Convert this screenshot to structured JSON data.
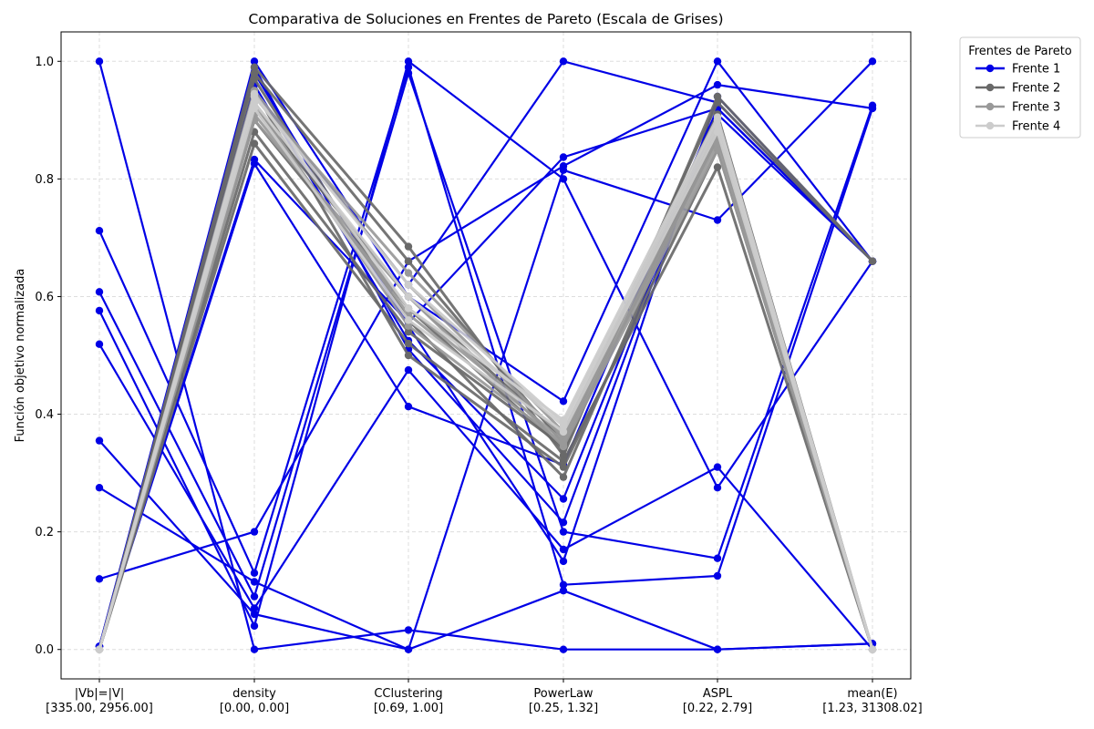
{
  "chart_data": {
    "type": "line",
    "subtype": "parallel-coordinates",
    "title": "Comparativa de Soluciones en Frentes de Pareto (Escala de Grises)",
    "xlabel": "",
    "ylabel": "Función objetivo normalizada",
    "ylim": [
      -0.05,
      1.05
    ],
    "yticks": [
      "0.0",
      "0.2",
      "0.4",
      "0.6",
      "0.8",
      "1.0"
    ],
    "grid": true,
    "axes": [
      {
        "name": "|Vb|=|V|",
        "range": "[335.00, 2956.00]"
      },
      {
        "name": "density",
        "range": "[0.00, 0.00]"
      },
      {
        "name": "CClustering",
        "range": "[0.69, 1.00]"
      },
      {
        "name": "PowerLaw",
        "range": "[0.25, 1.32]"
      },
      {
        "name": "ASPL",
        "range": "[0.22, 2.79]"
      },
      {
        "name": "mean(E)",
        "range": "[1.23, 31308.02]"
      }
    ],
    "legend": {
      "title": "Frentes de Pareto",
      "position": "outside-top-right",
      "entries": [
        "Frente 1",
        "Frente 2",
        "Frente 3",
        "Frente 4"
      ]
    },
    "series": [
      {
        "name": "Frente 1",
        "color": "#0000e6",
        "lines": [
          [
            1.0,
            0.0,
            0.033,
            0.0,
            0.0,
            0.01
          ],
          [
            0.712,
            0.13,
            0.99,
            0.11,
            0.125,
            0.92
          ],
          [
            0.608,
            0.09,
            0.98,
            0.2,
            0.155,
            0.925
          ],
          [
            0.576,
            0.04,
            1.0,
            0.8,
            0.275,
            0.66
          ],
          [
            0.519,
            0.07,
            0.475,
            0.17,
            0.31,
            0.0
          ],
          [
            0.355,
            0.06,
            0.0,
            0.1,
            0.0,
            0.01
          ],
          [
            0.275,
            0.115,
            0.0,
            0.815,
            0.73,
            1.0
          ],
          [
            0.12,
            0.2,
            0.66,
            0.822,
            0.96,
            0.92
          ],
          [
            0.005,
            0.826,
            0.413,
            0.314,
            0.92,
            0.66
          ],
          [
            0.005,
            0.833,
            0.556,
            0.837,
            0.92,
            0.66
          ],
          [
            0.005,
            0.96,
            0.525,
            0.256,
            0.91,
            0.66
          ],
          [
            0.005,
            0.95,
            0.62,
            1.0,
            0.93,
            0.66
          ],
          [
            0.005,
            1.0,
            0.6,
            0.422,
            1.0,
            0.66
          ],
          [
            0.005,
            0.99,
            0.51,
            0.216,
            0.92,
            0.66
          ],
          [
            0.005,
            0.98,
            0.55,
            0.15,
            0.94,
            0.66
          ]
        ]
      },
      {
        "name": "Frente 2",
        "color": "#696969",
        "lines": [
          [
            0.0,
            0.99,
            0.685,
            0.33,
            0.94,
            0.66
          ],
          [
            0.0,
            0.97,
            0.56,
            0.293,
            0.89,
            0.0
          ],
          [
            0.0,
            0.95,
            0.5,
            0.31,
            0.85,
            0.0
          ],
          [
            0.0,
            0.86,
            0.52,
            0.32,
            0.82,
            0.0
          ],
          [
            0.0,
            0.88,
            0.54,
            0.345,
            0.87,
            0.0
          ],
          [
            0.0,
            0.92,
            0.6,
            0.36,
            0.91,
            0.0
          ],
          [
            0.0,
            0.98,
            0.66,
            0.35,
            0.93,
            0.66
          ],
          [
            0.0,
            0.9,
            0.58,
            0.34,
            0.88,
            0.0
          ]
        ]
      },
      {
        "name": "Frente 3",
        "color": "#999999",
        "lines": [
          [
            0.0,
            0.94,
            0.64,
            0.37,
            0.9,
            0.0
          ],
          [
            0.0,
            0.92,
            0.57,
            0.355,
            0.87,
            0.0
          ],
          [
            0.0,
            0.9,
            0.6,
            0.345,
            0.85,
            0.0
          ],
          [
            0.0,
            0.95,
            0.62,
            0.36,
            0.89,
            0.0
          ],
          [
            0.0,
            0.93,
            0.55,
            0.35,
            0.86,
            0.0
          ],
          [
            0.0,
            0.91,
            0.58,
            0.365,
            0.88,
            0.0
          ]
        ]
      },
      {
        "name": "Frente 4",
        "color": "#cccccc",
        "lines": [
          [
            0.0,
            0.945,
            0.58,
            0.39,
            0.905,
            0.0
          ],
          [
            0.0,
            0.93,
            0.6,
            0.38,
            0.89,
            0.0
          ],
          [
            0.0,
            0.92,
            0.56,
            0.37,
            0.88,
            0.0
          ],
          [
            0.0,
            0.94,
            0.62,
            0.385,
            0.9,
            0.0
          ]
        ]
      }
    ]
  }
}
